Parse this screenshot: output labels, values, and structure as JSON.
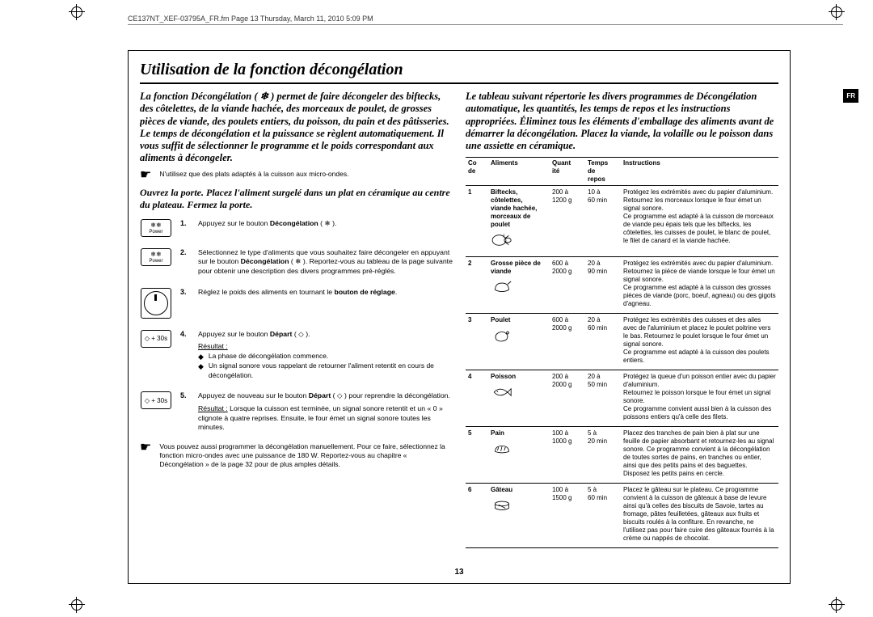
{
  "running_header": "CE137NT_XEF-03795A_FR.fm  Page 13  Thursday, March 11, 2010  5:09 PM",
  "lang_tab": "FR",
  "page_number": "13",
  "title": "Utilisation de la fonction décongélation",
  "left": {
    "lead": "La fonction Décongélation ( ❄ ) permet de faire décongeler des biftecks, des côtelettes, de la viande hachée, des morceaux de poulet, de grosses pièces de viande, des poulets entiers, du poisson, du pain et des pâtisseries. Le temps de décongélation et la puissance se règlent automatiquement. Il vous suffit de sélectionner le programme et le poids correspondant aux aliments à décongeler.",
    "note": "N'utilisez que des plats adaptés à la cuisson aux micro-ondes.",
    "open_door": "Ouvrez la porte. Placez l'aliment surgelé dans un plat en céramique au centre du plateau. Fermez la porte.",
    "steps": [
      {
        "num": "1.",
        "icon": "power",
        "text": "Appuyez sur le bouton <b>Décongélation</b> ( ❄ )."
      },
      {
        "num": "2.",
        "icon": "power",
        "text": "Sélectionnez le type d'aliments que vous souhaitez faire décongeler en appuyant sur le bouton <b>Décongélation</b> ( ❄ ). Reportez-vous au tableau de la page suivante pour obtenir une description des divers programmes pré-réglés."
      },
      {
        "num": "3.",
        "icon": "dial",
        "text": "Réglez le poids des aliments en tournant le <b>bouton de réglage</b>."
      },
      {
        "num": "4.",
        "icon": "+30s",
        "text": "Appuyez sur le bouton <b>Départ</b> ( ◇ ).",
        "resultat_label": "Résultat :",
        "result_items": [
          "La phase de décongélation commence.",
          "Un signal sonore vous rappelant de retourner l'aliment retentit en cours de décongélation."
        ]
      },
      {
        "num": "5.",
        "icon": "+30s",
        "text": "Appuyez de nouveau sur le bouton <b>Départ</b> ( ◇ ) pour reprendre la décongélation.",
        "resultat_label": "Résultat :",
        "resultat_text": "Lorsque la cuisson est terminée, un signal sonore retentit et un « 0 » clignote à quatre reprises. Ensuite, le four émet un signal sonore toutes les minutes."
      }
    ],
    "footer_note": "Vous pouvez aussi programmer la décongélation manuellement. Pour ce faire, sélectionnez la fonction micro-ondes avec une puissance de 180 W. Reportez-vous au chapitre « Décongélation » de la page 32 pour de plus amples détails."
  },
  "right": {
    "lead": "Le tableau suivant répertorie les divers programmes de Décongélation automatique, les quantités, les temps de repos et les instructions appropriées. Éliminez tous les éléments d'emballage des aliments avant de démarrer la décongélation. Placez la viande, la volaille ou le poisson dans une assiette en céramique.",
    "headers": {
      "code": "Co\nde",
      "aliments": "Aliments",
      "quantite": "Quant\nité",
      "temps": "Temps\nde\nrepos",
      "instructions": "Instructions"
    },
    "rows": [
      {
        "code": "1",
        "aliments": "Biftecks, côtelettes, viande hachée, morceaux de poulet",
        "icon": "meat",
        "quantite": "200 à 1200 g",
        "temps": "10 à 60 min",
        "instructions": "Protégez les extrémités avec du papier d'aluminium. Retournez les morceaux lorsque le four émet un signal sonore.\nCe programme est adapté à la cuisson de morceaux de viande peu épais tels que les biftecks, les côtelettes, les cuisses de poulet, le blanc de poulet, le filet de canard et la viande hachée."
      },
      {
        "code": "2",
        "aliments": "Grosse pièce de viande",
        "icon": "roast",
        "quantite": "600 à 2000 g",
        "temps": "20 à 90 min",
        "instructions": "Protégez les extrémités avec du papier d'aluminium. Retournez la pièce de viande lorsque le four émet un signal sonore.\nCe programme est adapté à la cuisson des grosses pièces de viande (porc, boeuf, agneau) ou des gigots d'agneau."
      },
      {
        "code": "3",
        "aliments": "Poulet",
        "icon": "chicken",
        "quantite": "600 à 2000 g",
        "temps": "20 à 60 min",
        "instructions": "Protégez les extrémités des cuisses et des ailes avec de l'aluminium et placez le poulet poitrine vers le bas. Retournez le poulet lorsque le four émet un signal sonore.\nCe programme est adapté à la cuisson des poulets entiers."
      },
      {
        "code": "4",
        "aliments": "Poisson",
        "icon": "fish",
        "quantite": "200 à 2000 g",
        "temps": "20 à 50 min",
        "instructions": "Protégez la queue d'un poisson entier avec du papier d'aluminium.\nRetournez le poisson lorsque le four émet un signal sonore.\nCe programme convient aussi bien à la cuisson des poissons entiers qu'à celle des filets."
      },
      {
        "code": "5",
        "aliments": "Pain",
        "icon": "bread",
        "quantite": "100 à 1000 g",
        "temps": "5 à 20 min",
        "instructions": "Placez des tranches de pain bien à plat sur une feuille de papier absorbant et retournez-les au signal sonore. Ce programme convient à la décongélation de toutes sortes de pains, en tranches ou entier, ainsi que des petits pains et des baguettes.\nDisposez les petits pains en cercle."
      },
      {
        "code": "6",
        "aliments": "Gâteau",
        "icon": "cake",
        "quantite": "100 à 1500 g",
        "temps": "5 à 60 min",
        "instructions": "Placez le gâteau sur le plateau. Ce programme convient à la cuisson de gâteaux à base de levure ainsi qu'à celles des biscuits de Savoie, tartes au fromage, pâtes feuilletées, gâteaux aux fruits et biscuits roulés à la confiture. En revanche, ne l'utilisez pas pour faire cuire des gâteaux fourrés à la crème ou nappés de chocolat."
      }
    ]
  }
}
